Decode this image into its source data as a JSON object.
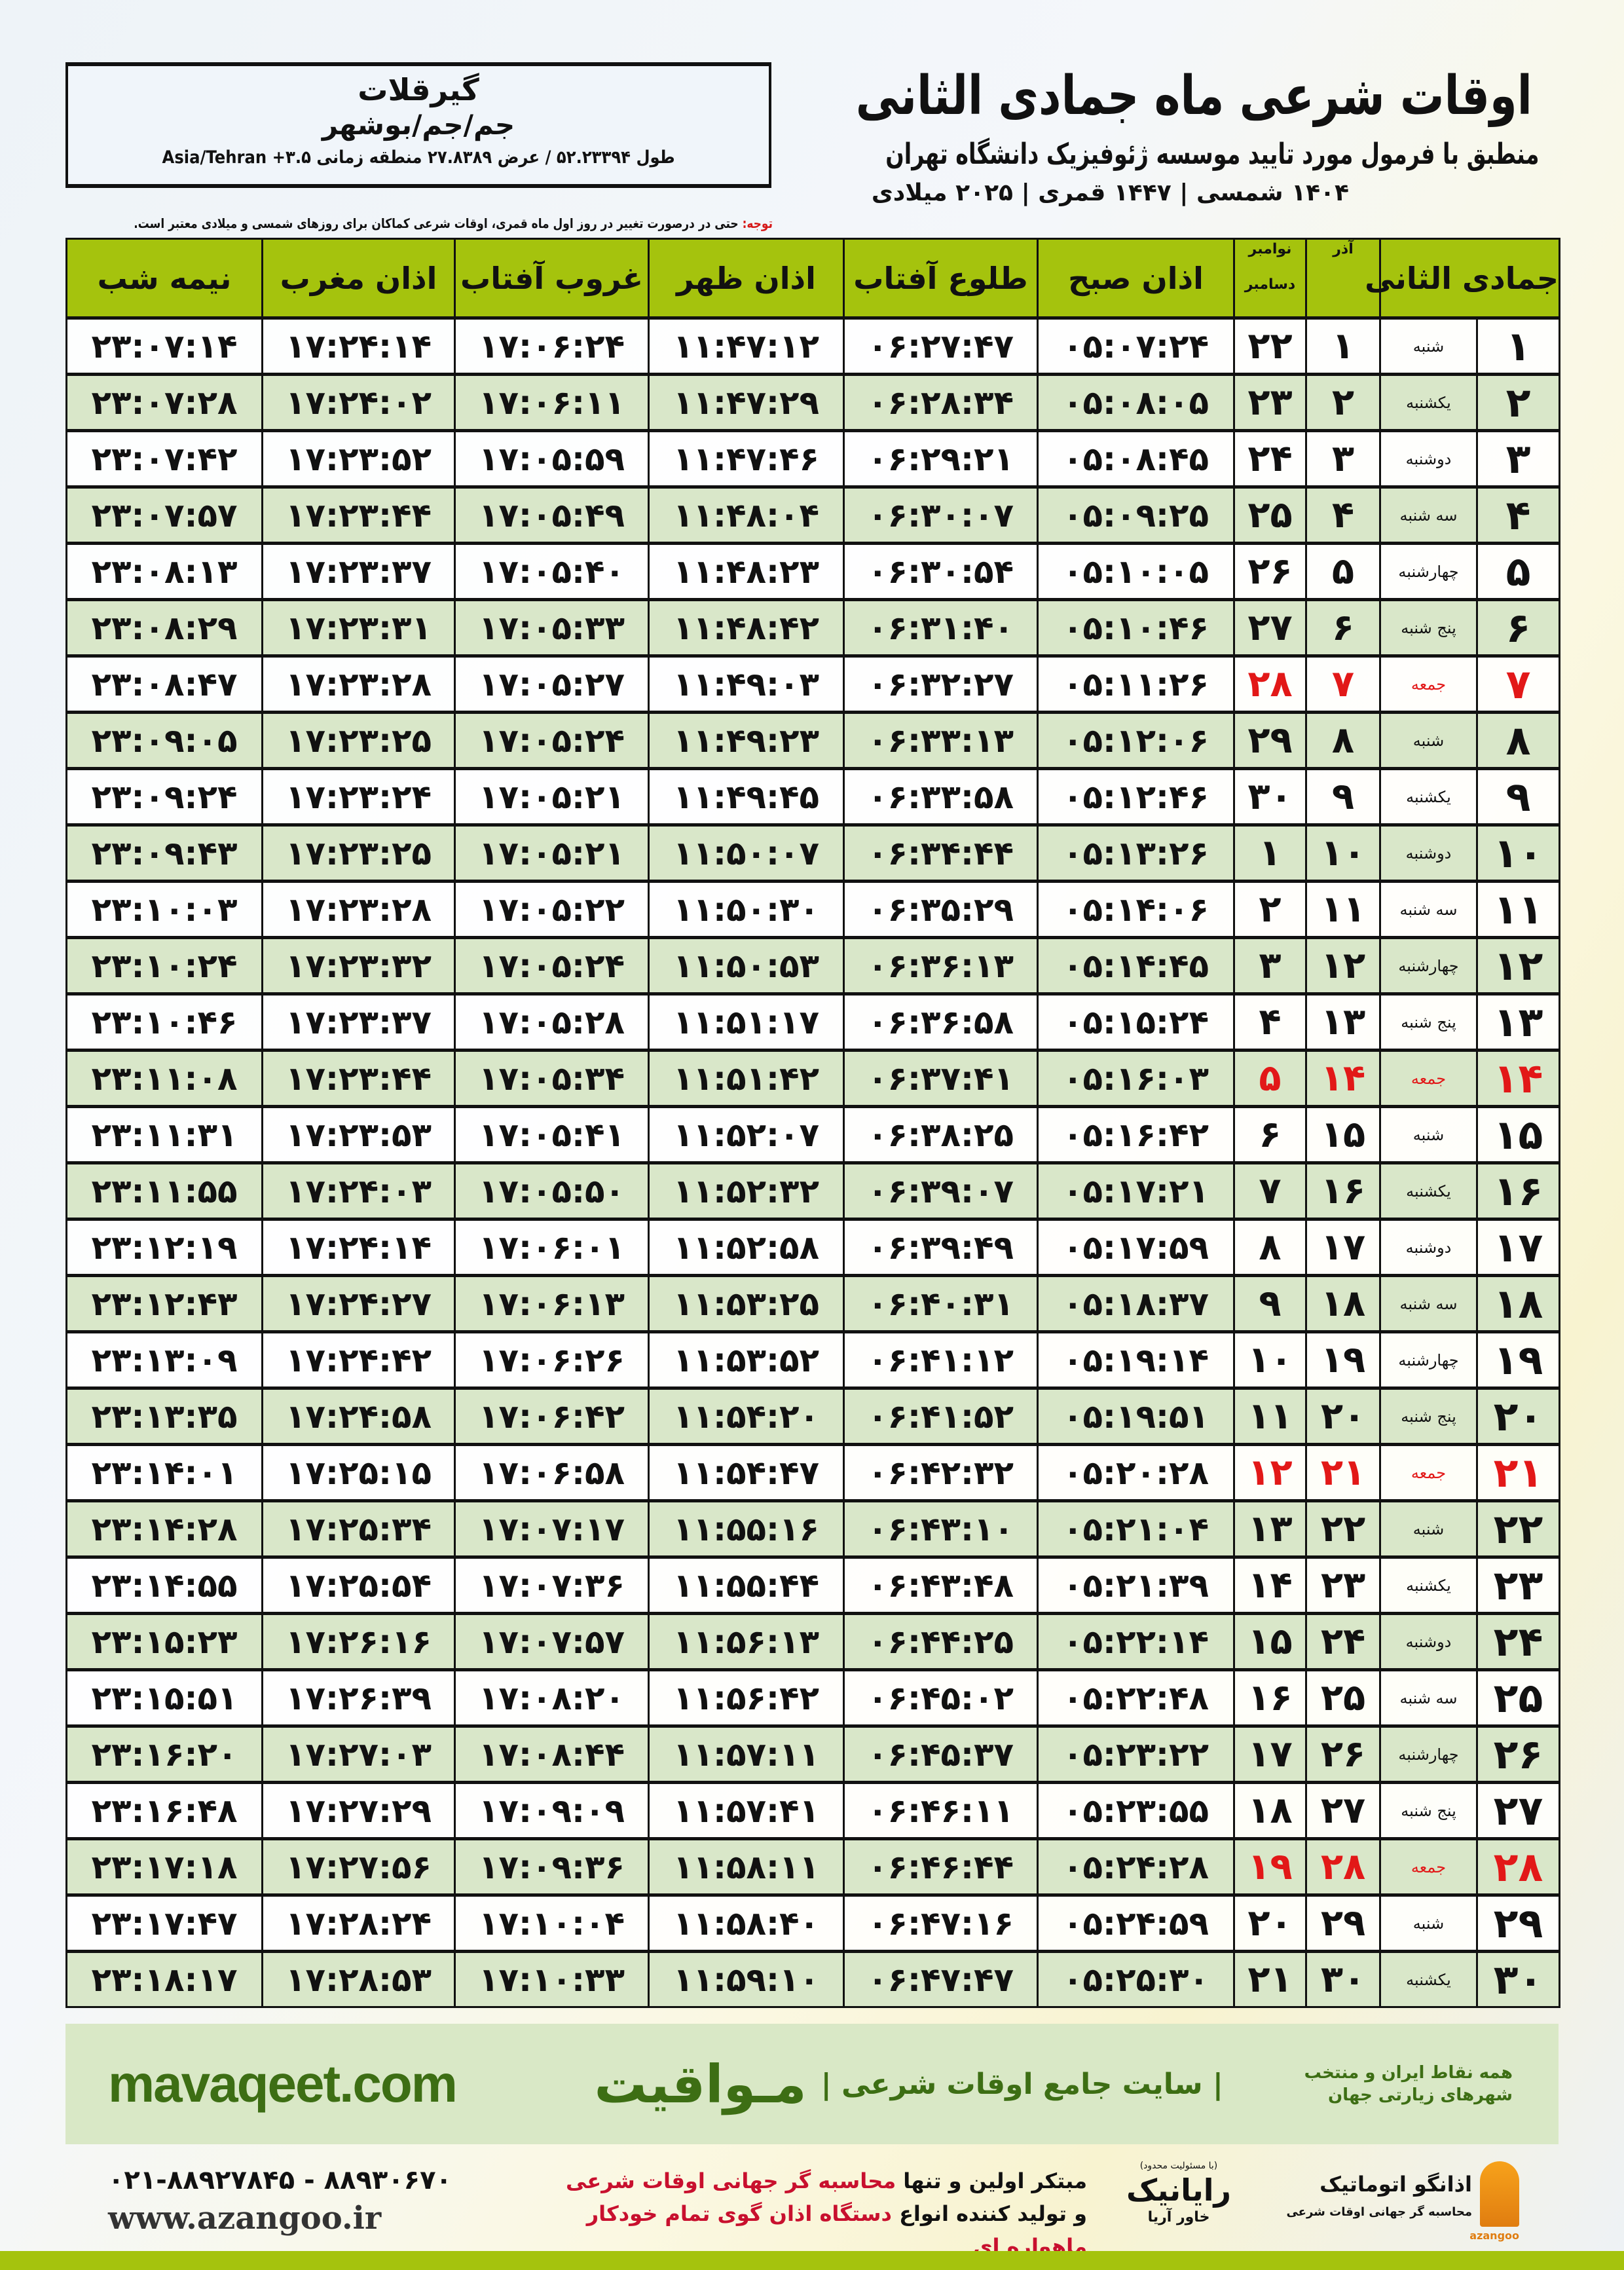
{
  "location": {
    "city": "گیرقلات",
    "path": "جم/جم/بوشهر",
    "coords": "طول ۵۲.۲۳۳۹۴ / عرض ۲۷.۸۳۸۹ منطقه زمانی ۳.۵+ Asia/Tehran"
  },
  "header": {
    "title": "اوقات شرعی ماه جمادی الثانی",
    "subtitle": "منطبق با فرمول مورد تایید موسسه ژئوفیزیک دانشگاه تهران",
    "dateline": "۱۴۰۴ شمسی | ۱۴۴۷ قمری | ۲۰۲۵ میلادی"
  },
  "note": {
    "label": "توجه:",
    "text": " حتی در درصورت تغییر در روز اول ماه قمری، اوقات شرعی کماکان برای روزهای شمسی و میلادی معتبر است."
  },
  "columns": {
    "month": "جمادی الثانی",
    "azar": "آذر",
    "greg1": "نوامبر",
    "greg2": "دسامبر",
    "sobh": "اذان صبح",
    "tolu": "طلوع آفتاب",
    "zohr": "اذان ظهر",
    "ghorub": "غروب آفتاب",
    "maghreb": "اذان مغرب",
    "nime": "نیمه شب"
  },
  "colors": {
    "header_green": "#a5c30d",
    "row_green": "#d9e7c9",
    "friday_red": "#e21818",
    "brand_green": "#3d6e14"
  },
  "rows": [
    [
      "۱",
      "شنبه",
      "۱",
      "۲۲",
      "۰۵:۰۷:۲۴",
      "۰۶:۲۷:۴۷",
      "۱۱:۴۷:۱۲",
      "۱۷:۰۶:۲۴",
      "۱۷:۲۴:۱۴",
      "۲۳:۰۷:۱۴"
    ],
    [
      "۲",
      "یکشنبه",
      "۲",
      "۲۳",
      "۰۵:۰۸:۰۵",
      "۰۶:۲۸:۳۴",
      "۱۱:۴۷:۲۹",
      "۱۷:۰۶:۱۱",
      "۱۷:۲۴:۰۲",
      "۲۳:۰۷:۲۸"
    ],
    [
      "۳",
      "دوشنبه",
      "۳",
      "۲۴",
      "۰۵:۰۸:۴۵",
      "۰۶:۲۹:۲۱",
      "۱۱:۴۷:۴۶",
      "۱۷:۰۵:۵۹",
      "۱۷:۲۳:۵۲",
      "۲۳:۰۷:۴۲"
    ],
    [
      "۴",
      "سه شنبه",
      "۴",
      "۲۵",
      "۰۵:۰۹:۲۵",
      "۰۶:۳۰:۰۷",
      "۱۱:۴۸:۰۴",
      "۱۷:۰۵:۴۹",
      "۱۷:۲۳:۴۴",
      "۲۳:۰۷:۵۷"
    ],
    [
      "۵",
      "چهارشنبه",
      "۵",
      "۲۶",
      "۰۵:۱۰:۰۵",
      "۰۶:۳۰:۵۴",
      "۱۱:۴۸:۲۳",
      "۱۷:۰۵:۴۰",
      "۱۷:۲۳:۳۷",
      "۲۳:۰۸:۱۳"
    ],
    [
      "۶",
      "پنج شنبه",
      "۶",
      "۲۷",
      "۰۵:۱۰:۴۶",
      "۰۶:۳۱:۴۰",
      "۱۱:۴۸:۴۲",
      "۱۷:۰۵:۳۳",
      "۱۷:۲۳:۳۱",
      "۲۳:۰۸:۲۹"
    ],
    [
      "۷",
      "جمعه",
      "۷",
      "۲۸",
      "۰۵:۱۱:۲۶",
      "۰۶:۳۲:۲۷",
      "۱۱:۴۹:۰۳",
      "۱۷:۰۵:۲۷",
      "۱۷:۲۳:۲۸",
      "۲۳:۰۸:۴۷"
    ],
    [
      "۸",
      "شنبه",
      "۸",
      "۲۹",
      "۰۵:۱۲:۰۶",
      "۰۶:۳۳:۱۳",
      "۱۱:۴۹:۲۳",
      "۱۷:۰۵:۲۴",
      "۱۷:۲۳:۲۵",
      "۲۳:۰۹:۰۵"
    ],
    [
      "۹",
      "یکشنبه",
      "۹",
      "۳۰",
      "۰۵:۱۲:۴۶",
      "۰۶:۳۳:۵۸",
      "۱۱:۴۹:۴۵",
      "۱۷:۰۵:۲۱",
      "۱۷:۲۳:۲۴",
      "۲۳:۰۹:۲۴"
    ],
    [
      "۱۰",
      "دوشنبه",
      "۱۰",
      "۱",
      "۰۵:۱۳:۲۶",
      "۰۶:۳۴:۴۴",
      "۱۱:۵۰:۰۷",
      "۱۷:۰۵:۲۱",
      "۱۷:۲۳:۲۵",
      "۲۳:۰۹:۴۳"
    ],
    [
      "۱۱",
      "سه شنبه",
      "۱۱",
      "۲",
      "۰۵:۱۴:۰۶",
      "۰۶:۳۵:۲۹",
      "۱۱:۵۰:۳۰",
      "۱۷:۰۵:۲۲",
      "۱۷:۲۳:۲۸",
      "۲۳:۱۰:۰۳"
    ],
    [
      "۱۲",
      "چهارشنبه",
      "۱۲",
      "۳",
      "۰۵:۱۴:۴۵",
      "۰۶:۳۶:۱۳",
      "۱۱:۵۰:۵۳",
      "۱۷:۰۵:۲۴",
      "۱۷:۲۳:۳۲",
      "۲۳:۱۰:۲۴"
    ],
    [
      "۱۳",
      "پنج شنبه",
      "۱۳",
      "۴",
      "۰۵:۱۵:۲۴",
      "۰۶:۳۶:۵۸",
      "۱۱:۵۱:۱۷",
      "۱۷:۰۵:۲۸",
      "۱۷:۲۳:۳۷",
      "۲۳:۱۰:۴۶"
    ],
    [
      "۱۴",
      "جمعه",
      "۱۴",
      "۵",
      "۰۵:۱۶:۰۳",
      "۰۶:۳۷:۴۱",
      "۱۱:۵۱:۴۲",
      "۱۷:۰۵:۳۴",
      "۱۷:۲۳:۴۴",
      "۲۳:۱۱:۰۸"
    ],
    [
      "۱۵",
      "شنبه",
      "۱۵",
      "۶",
      "۰۵:۱۶:۴۲",
      "۰۶:۳۸:۲۵",
      "۱۱:۵۲:۰۷",
      "۱۷:۰۵:۴۱",
      "۱۷:۲۳:۵۳",
      "۲۳:۱۱:۳۱"
    ],
    [
      "۱۶",
      "یکشنبه",
      "۱۶",
      "۷",
      "۰۵:۱۷:۲۱",
      "۰۶:۳۹:۰۷",
      "۱۱:۵۲:۳۲",
      "۱۷:۰۵:۵۰",
      "۱۷:۲۴:۰۳",
      "۲۳:۱۱:۵۵"
    ],
    [
      "۱۷",
      "دوشنبه",
      "۱۷",
      "۸",
      "۰۵:۱۷:۵۹",
      "۰۶:۳۹:۴۹",
      "۱۱:۵۲:۵۸",
      "۱۷:۰۶:۰۱",
      "۱۷:۲۴:۱۴",
      "۲۳:۱۲:۱۹"
    ],
    [
      "۱۸",
      "سه شنبه",
      "۱۸",
      "۹",
      "۰۵:۱۸:۳۷",
      "۰۶:۴۰:۳۱",
      "۱۱:۵۳:۲۵",
      "۱۷:۰۶:۱۳",
      "۱۷:۲۴:۲۷",
      "۲۳:۱۲:۴۳"
    ],
    [
      "۱۹",
      "چهارشنبه",
      "۱۹",
      "۱۰",
      "۰۵:۱۹:۱۴",
      "۰۶:۴۱:۱۲",
      "۱۱:۵۳:۵۲",
      "۱۷:۰۶:۲۶",
      "۱۷:۲۴:۴۲",
      "۲۳:۱۳:۰۹"
    ],
    [
      "۲۰",
      "پنج شنبه",
      "۲۰",
      "۱۱",
      "۰۵:۱۹:۵۱",
      "۰۶:۴۱:۵۲",
      "۱۱:۵۴:۲۰",
      "۱۷:۰۶:۴۲",
      "۱۷:۲۴:۵۸",
      "۲۳:۱۳:۳۵"
    ],
    [
      "۲۱",
      "جمعه",
      "۲۱",
      "۱۲",
      "۰۵:۲۰:۲۸",
      "۰۶:۴۲:۳۲",
      "۱۱:۵۴:۴۷",
      "۱۷:۰۶:۵۸",
      "۱۷:۲۵:۱۵",
      "۲۳:۱۴:۰۱"
    ],
    [
      "۲۲",
      "شنبه",
      "۲۲",
      "۱۳",
      "۰۵:۲۱:۰۴",
      "۰۶:۴۳:۱۰",
      "۱۱:۵۵:۱۶",
      "۱۷:۰۷:۱۷",
      "۱۷:۲۵:۳۴",
      "۲۳:۱۴:۲۸"
    ],
    [
      "۲۳",
      "یکشنبه",
      "۲۳",
      "۱۴",
      "۰۵:۲۱:۳۹",
      "۰۶:۴۳:۴۸",
      "۱۱:۵۵:۴۴",
      "۱۷:۰۷:۳۶",
      "۱۷:۲۵:۵۴",
      "۲۳:۱۴:۵۵"
    ],
    [
      "۲۴",
      "دوشنبه",
      "۲۴",
      "۱۵",
      "۰۵:۲۲:۱۴",
      "۰۶:۴۴:۲۵",
      "۱۱:۵۶:۱۳",
      "۱۷:۰۷:۵۷",
      "۱۷:۲۶:۱۶",
      "۲۳:۱۵:۲۳"
    ],
    [
      "۲۵",
      "سه شنبه",
      "۲۵",
      "۱۶",
      "۰۵:۲۲:۴۸",
      "۰۶:۴۵:۰۲",
      "۱۱:۵۶:۴۲",
      "۱۷:۰۸:۲۰",
      "۱۷:۲۶:۳۹",
      "۲۳:۱۵:۵۱"
    ],
    [
      "۲۶",
      "چهارشنبه",
      "۲۶",
      "۱۷",
      "۰۵:۲۳:۲۲",
      "۰۶:۴۵:۳۷",
      "۱۱:۵۷:۱۱",
      "۱۷:۰۸:۴۴",
      "۱۷:۲۷:۰۳",
      "۲۳:۱۶:۲۰"
    ],
    [
      "۲۷",
      "پنج شنبه",
      "۲۷",
      "۱۸",
      "۰۵:۲۳:۵۵",
      "۰۶:۴۶:۱۱",
      "۱۱:۵۷:۴۱",
      "۱۷:۰۹:۰۹",
      "۱۷:۲۷:۲۹",
      "۲۳:۱۶:۴۸"
    ],
    [
      "۲۸",
      "جمعه",
      "۲۸",
      "۱۹",
      "۰۵:۲۴:۲۸",
      "۰۶:۴۶:۴۴",
      "۱۱:۵۸:۱۱",
      "۱۷:۰۹:۳۶",
      "۱۷:۲۷:۵۶",
      "۲۳:۱۷:۱۸"
    ],
    [
      "۲۹",
      "شنبه",
      "۲۹",
      "۲۰",
      "۰۵:۲۴:۵۹",
      "۰۶:۴۷:۱۶",
      "۱۱:۵۸:۴۰",
      "۱۷:۱۰:۰۴",
      "۱۷:۲۸:۲۴",
      "۲۳:۱۷:۴۷"
    ],
    [
      "۳۰",
      "یکشنبه",
      "۳۰",
      "۲۱",
      "۰۵:۲۵:۳۰",
      "۰۶:۴۷:۴۷",
      "۱۱:۵۹:۱۰",
      "۱۷:۱۰:۳۳",
      "۱۷:۲۸:۵۳",
      "۲۳:۱۸:۱۷"
    ]
  ],
  "footer": {
    "brand": "مـواقیت",
    "brand_desc": "| سایت جامع اوقات شرعی |",
    "brand_sub": "همه نقاط ایران و منتخب شهرهای زیارتی جهان",
    "site": "mavaqeet.com",
    "phones": "۰۲۱-۸۸۹۲۷۸۴۵ - ۸۸۹۳۰۶۷۰",
    "web": "www.azangoo.ir",
    "promo_line1_a": "مبتکر اولین و تنها ",
    "promo_line1_b": "محاسبه گر جهانی اوقات شرعی",
    "promo_line2_a": "و تولید کننده انواع ",
    "promo_line2_b": "دستگاه اذان گوی تمام خودکار ماهواره ای",
    "rayanik_small": "(با مسئولیت محدود)",
    "rayanik_name": "رایانیک",
    "rayanik_sub": "خاور آریا",
    "azangoo_name": "اذانگو اتوماتیک",
    "azangoo_sub": "محاسبه گر جهانی اوقات شرعی",
    "azangoo_en": "azangoo"
  }
}
